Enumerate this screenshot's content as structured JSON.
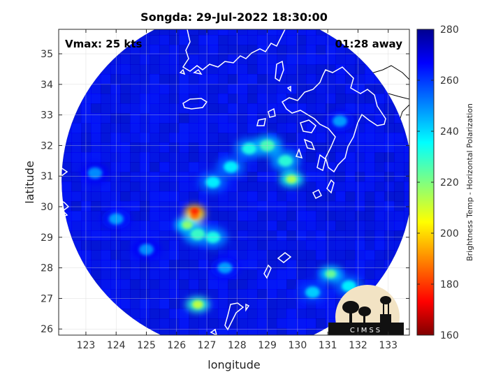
{
  "title": "Songda: 29-Jul-2022 18:30:00",
  "annotations": {
    "vmax": "Vmax: 25 kts",
    "time_away": "01:28 away"
  },
  "logo": {
    "text": "CIMSS"
  },
  "colors": {
    "colormap": [
      "#00008f",
      "#0000ff",
      "#0080ff",
      "#00ffff",
      "#80ff80",
      "#ffff00",
      "#ff8000",
      "#ff0000",
      "#800000"
    ],
    "coastline": "#ffffff",
    "land_outline": "#000000"
  },
  "chart_data": {
    "type": "heatmap",
    "title": "Songda: 29-Jul-2022 18:30:00",
    "xlabel": "longitude",
    "ylabel": "latitude",
    "xlim": [
      122.1,
      133.7
    ],
    "ylim": [
      25.8,
      35.8
    ],
    "x_ticks": [
      123,
      124,
      125,
      126,
      127,
      128,
      129,
      130,
      131,
      132,
      133
    ],
    "y_ticks": [
      26,
      27,
      28,
      29,
      30,
      31,
      32,
      33,
      34,
      35
    ],
    "grid": true,
    "colorbar": {
      "label": "Brightness Temp - Horizontal Polarization",
      "range": [
        160,
        280
      ],
      "ticks": [
        160,
        180,
        200,
        220,
        240,
        260,
        280
      ],
      "colormap": "jet"
    },
    "swath_center": [
      128.0,
      30.85
    ],
    "swath_radius_deg": [
      5.8,
      5.6
    ],
    "background_temp": 268,
    "features": [
      {
        "lon": 126.6,
        "lat": 29.7,
        "temp": 188
      },
      {
        "lon": 126.6,
        "lat": 29.85,
        "temp": 178
      },
      {
        "lon": 126.35,
        "lat": 29.4,
        "temp": 218
      },
      {
        "lon": 126.7,
        "lat": 29.1,
        "temp": 228
      },
      {
        "lon": 127.2,
        "lat": 29.0,
        "temp": 232
      },
      {
        "lon": 127.2,
        "lat": 30.8,
        "temp": 236
      },
      {
        "lon": 127.8,
        "lat": 31.3,
        "temp": 236
      },
      {
        "lon": 128.4,
        "lat": 31.9,
        "temp": 232
      },
      {
        "lon": 129.0,
        "lat": 32.0,
        "temp": 226
      },
      {
        "lon": 129.6,
        "lat": 31.5,
        "temp": 230
      },
      {
        "lon": 129.8,
        "lat": 30.9,
        "temp": 214
      },
      {
        "lon": 126.7,
        "lat": 26.8,
        "temp": 212
      },
      {
        "lon": 131.1,
        "lat": 27.8,
        "temp": 222
      },
      {
        "lon": 130.5,
        "lat": 27.2,
        "temp": 240
      },
      {
        "lon": 131.7,
        "lat": 27.4,
        "temp": 236
      },
      {
        "lon": 124.0,
        "lat": 29.6,
        "temp": 246
      },
      {
        "lon": 125.0,
        "lat": 28.6,
        "temp": 248
      },
      {
        "lon": 123.3,
        "lat": 31.1,
        "temp": 248
      },
      {
        "lon": 127.6,
        "lat": 28.0,
        "temp": 246
      },
      {
        "lon": 131.4,
        "lat": 32.8,
        "temp": 246
      }
    ]
  }
}
